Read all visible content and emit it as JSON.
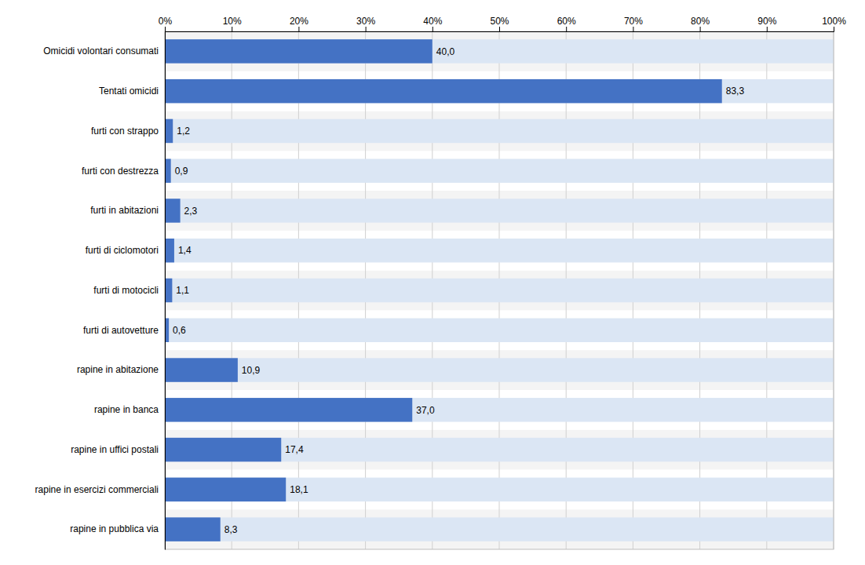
{
  "chart_data": {
    "type": "bar",
    "orientation": "horizontal",
    "categories": [
      "rapine in pubblica via",
      "rapine in esercizi commerciali",
      "rapine in uffici postali",
      "rapine in banca",
      "rapine in abitazione",
      "furti di autovetture",
      "furti di motocicli",
      "furti di ciclomotori",
      "furti in abitazioni",
      "furti con destrezza",
      "furti con strappo",
      "Tentati omicidi",
      "Omicidi volontari consumati"
    ],
    "values": [
      8.3,
      18.1,
      17.4,
      37.0,
      10.9,
      0.6,
      1.1,
      1.4,
      2.3,
      0.9,
      1.2,
      83.3,
      40.0
    ],
    "value_labels": [
      "8,3",
      "18,1",
      "17,4",
      "37,0",
      "10,9",
      "0,6",
      "1,1",
      "1,4",
      "2,3",
      "0,9",
      "1,2",
      "83,3",
      "40,0"
    ],
    "data_labels": true,
    "color": "#4472C4",
    "xlim": [
      0,
      100
    ],
    "xticks": [
      {
        "value": 0,
        "label": "0%"
      },
      {
        "value": 10,
        "label": "10%"
      },
      {
        "value": 20,
        "label": "20%"
      },
      {
        "value": 30,
        "label": "30%"
      },
      {
        "value": 40,
        "label": "40%"
      },
      {
        "value": 50,
        "label": "50%"
      },
      {
        "value": 60,
        "label": "60%"
      },
      {
        "value": 70,
        "label": "70%"
      },
      {
        "value": 80,
        "label": "80%"
      },
      {
        "value": 90,
        "label": "90%"
      },
      {
        "value": 100,
        "label": "100%"
      }
    ],
    "grid": true
  }
}
